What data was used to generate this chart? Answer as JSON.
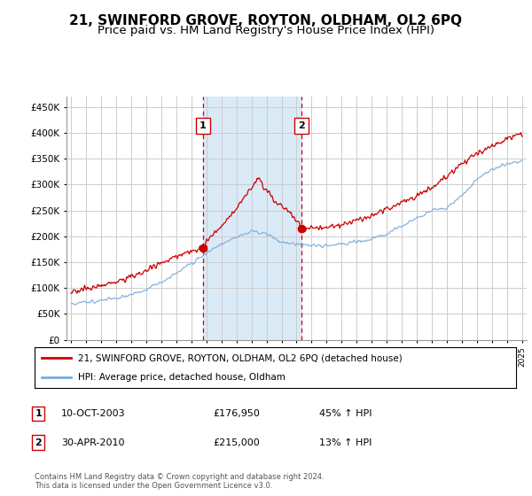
{
  "title": "21, SWINFORD GROVE, ROYTON, OLDHAM, OL2 6PQ",
  "subtitle": "Price paid vs. HM Land Registry's House Price Index (HPI)",
  "title_fontsize": 11,
  "subtitle_fontsize": 9.5,
  "ylabel_ticks": [
    "£0",
    "£50K",
    "£100K",
    "£150K",
    "£200K",
    "£250K",
    "£300K",
    "£350K",
    "£400K",
    "£450K"
  ],
  "ytick_values": [
    0,
    50000,
    100000,
    150000,
    200000,
    250000,
    300000,
    350000,
    400000,
    450000
  ],
  "ylim": [
    0,
    470000
  ],
  "xlim_start": 1994.7,
  "xlim_end": 2025.3,
  "hpi_color": "#7aabdb",
  "price_color": "#cc0000",
  "sale1_x": 2003.78,
  "sale1_y": 176950,
  "sale2_x": 2010.33,
  "sale2_y": 215000,
  "legend_line1": "21, SWINFORD GROVE, ROYTON, OLDHAM, OL2 6PQ (detached house)",
  "legend_line2": "HPI: Average price, detached house, Oldham",
  "note1_label": "1",
  "note1_date": "10-OCT-2003",
  "note1_price": "£176,950",
  "note1_hpi": "45% ↑ HPI",
  "note2_label": "2",
  "note2_date": "30-APR-2010",
  "note2_price": "£215,000",
  "note2_hpi": "13% ↑ HPI",
  "footer": "Contains HM Land Registry data © Crown copyright and database right 2024.\nThis data is licensed under the Open Government Licence v3.0.",
  "highlight_color": "#daeaf7"
}
